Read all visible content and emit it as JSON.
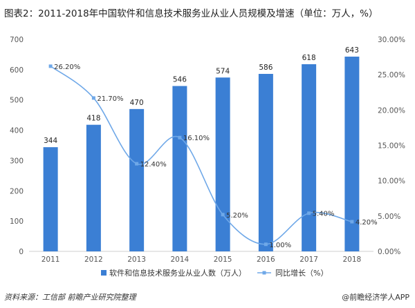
{
  "title": "图表2：2011-2018年中国软件和信息技术服务业从业人员规模及增速（单位：万人，%）",
  "footer": {
    "source": "资料来源：工信部 前瞻产业研究院整理",
    "brand": "@前瞻经济学人APP"
  },
  "chart_data": {
    "type": "bar",
    "categories": [
      "2011",
      "2012",
      "2013",
      "2014",
      "2015",
      "2016",
      "2017",
      "2018"
    ],
    "series": [
      {
        "name": "软件和信息技术服务业从业人数（万人）",
        "type": "bar",
        "axis": "left",
        "color": "#3b7fd4",
        "values": [
          344,
          418,
          470,
          546,
          574,
          586,
          618,
          643
        ],
        "labels": [
          "344",
          "418",
          "470",
          "546",
          "574",
          "586",
          "618",
          "643"
        ]
      },
      {
        "name": "同比增长（%）",
        "type": "line",
        "axis": "right",
        "color": "#6fa8e8",
        "values": [
          26.2,
          21.7,
          12.4,
          16.1,
          5.2,
          1.0,
          5.4,
          4.2
        ],
        "labels": [
          "26.20%",
          "21.70%",
          "12.40%",
          "16.10%",
          "5.20%",
          "1.00%",
          "5.40%",
          "4.20%"
        ]
      }
    ],
    "y_left": {
      "min": 0,
      "max": 700,
      "ticks": [
        0,
        100,
        200,
        300,
        400,
        500,
        600,
        700
      ],
      "tick_labels": [
        "0",
        "100",
        "200",
        "300",
        "400",
        "500",
        "600",
        "700"
      ]
    },
    "y_right": {
      "min": 0,
      "max": 30,
      "ticks": [
        0,
        5,
        10,
        15,
        20,
        25,
        30
      ],
      "tick_labels": [
        "0.00%",
        "5.00%",
        "10.00%",
        "15.00%",
        "20.00%",
        "25.00%",
        "30.00%"
      ]
    },
    "grid": false,
    "legend_position": "bottom"
  }
}
